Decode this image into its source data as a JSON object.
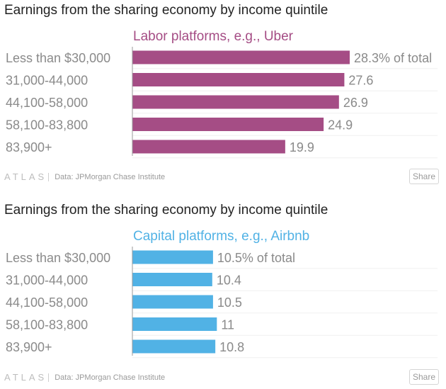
{
  "chart_data": [
    {
      "type": "bar",
      "orientation": "horizontal",
      "title": "Earnings from the sharing economy by income quintile",
      "series_name": "Labor platforms, e.g., Uber",
      "categories": [
        "Less than $30,000",
        "31,000-44,000",
        "44,100-58,000",
        "58,100-83,800",
        "83,900+"
      ],
      "values": [
        28.3,
        27.6,
        26.9,
        24.9,
        19.9
      ],
      "value_labels": [
        "28.3% of total",
        "27.6",
        "26.9",
        "24.9",
        "19.9"
      ],
      "xlim": [
        0,
        28.3
      ],
      "color": "#a54d85",
      "title_color": "#a54d85",
      "source": "Data: JPMorgan Chase Institute",
      "brand": "ATLAS",
      "share_label": "Share"
    },
    {
      "type": "bar",
      "orientation": "horizontal",
      "title": "Earnings from the sharing economy by income quintile",
      "series_name": "Capital platforms, e.g., Airbnb",
      "categories": [
        "Less than $30,000",
        "31,000-44,000",
        "44,100-58,000",
        "58,100-83,800",
        "83,900+"
      ],
      "values": [
        10.5,
        10.4,
        10.5,
        11,
        10.8
      ],
      "value_labels": [
        "10.5% of total",
        "10.4",
        "10.5",
        "11",
        "10.8"
      ],
      "xlim": [
        0,
        28.3
      ],
      "color": "#51b2e5",
      "title_color": "#51b2e5",
      "source": "Data: JPMorgan Chase Institute",
      "brand": "ATLAS",
      "share_label": "Share"
    }
  ]
}
